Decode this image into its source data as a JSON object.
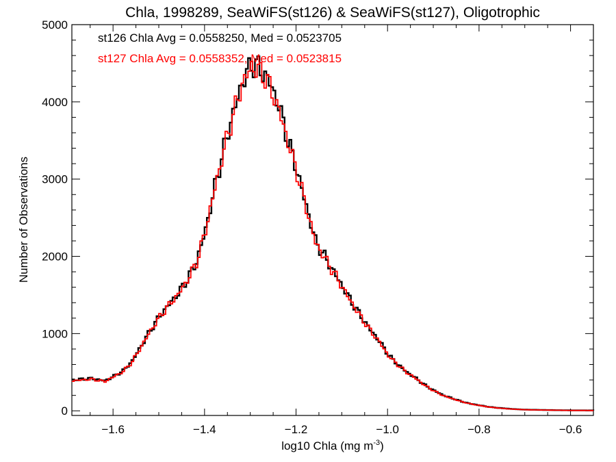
{
  "chart_data": {
    "type": "histogram",
    "title": "Chla, 1998289, SeaWiFS(st126) & SeaWiFS(st127), Oligotrophic",
    "xlabel_main": "log10 Chla (mg m",
    "xlabel_sup": "-3",
    "xlabel_end": ")",
    "ylabel": "Number of Observations",
    "xlim": [
      -1.69,
      -0.55
    ],
    "ylim": [
      -60,
      5000
    ],
    "xticks": [
      -1.6,
      -1.4,
      -1.2,
      -1.0,
      -0.8,
      -0.6
    ],
    "xtick_labels": [
      "−1.6",
      "−1.4",
      "−1.2",
      "−1.0",
      "−0.8",
      "−0.6"
    ],
    "yticks": [
      0,
      1000,
      2000,
      3000,
      4000,
      5000
    ],
    "ytick_labels": [
      "0",
      "1000",
      "2000",
      "3000",
      "4000",
      "5000"
    ],
    "annotations": [
      {
        "text": "st126 Chla Avg = 0.0558250, Med = 0.0523705",
        "color": "#000000"
      },
      {
        "text": "st127 Chla Avg = 0.0558352, Med = 0.0523815",
        "color": "#ff0000"
      }
    ],
    "series": [
      {
        "color": "#000000",
        "x": [
          -1.69,
          -1.65,
          -1.62,
          -1.6,
          -1.58,
          -1.56,
          -1.54,
          -1.52,
          -1.5,
          -1.48,
          -1.46,
          -1.44,
          -1.42,
          -1.4,
          -1.38,
          -1.36,
          -1.34,
          -1.32,
          -1.3,
          -1.29,
          -1.28,
          -1.27,
          -1.26,
          -1.24,
          -1.22,
          -1.2,
          -1.18,
          -1.16,
          -1.14,
          -1.12,
          -1.1,
          -1.08,
          -1.06,
          -1.04,
          -1.02,
          -1.0,
          -0.98,
          -0.96,
          -0.94,
          -0.92,
          -0.9,
          -0.88,
          -0.86,
          -0.84,
          -0.82,
          -0.8,
          -0.78,
          -0.76,
          -0.74,
          -0.72,
          -0.7,
          -0.65,
          -0.6,
          -0.55
        ],
        "y": [
          400,
          420,
          390,
          450,
          520,
          650,
          850,
          1050,
          1230,
          1380,
          1520,
          1700,
          1930,
          2350,
          2900,
          3400,
          3850,
          4250,
          4480,
          4480,
          4400,
          4350,
          4250,
          3950,
          3500,
          3100,
          2650,
          2200,
          2000,
          1800,
          1600,
          1400,
          1220,
          1050,
          900,
          720,
          600,
          500,
          420,
          330,
          260,
          200,
          160,
          120,
          90,
          70,
          50,
          38,
          28,
          20,
          15,
          10,
          6,
          5
        ]
      },
      {
        "color": "#ff0000",
        "x": [
          -1.69,
          -1.65,
          -1.62,
          -1.6,
          -1.58,
          -1.56,
          -1.54,
          -1.52,
          -1.5,
          -1.48,
          -1.46,
          -1.44,
          -1.42,
          -1.4,
          -1.38,
          -1.36,
          -1.34,
          -1.32,
          -1.3,
          -1.29,
          -1.28,
          -1.27,
          -1.26,
          -1.24,
          -1.22,
          -1.2,
          -1.18,
          -1.16,
          -1.14,
          -1.12,
          -1.1,
          -1.08,
          -1.06,
          -1.04,
          -1.02,
          -1.0,
          -0.98,
          -0.96,
          -0.94,
          -0.92,
          -0.9,
          -0.88,
          -0.86,
          -0.84,
          -0.82,
          -0.8,
          -0.78,
          -0.76,
          -0.74,
          -0.72,
          -0.7,
          -0.65,
          -0.6,
          -0.55
        ],
        "y": [
          390,
          410,
          380,
          445,
          510,
          640,
          840,
          1040,
          1220,
          1370,
          1510,
          1690,
          1920,
          2340,
          2880,
          3380,
          3830,
          4230,
          4460,
          4420,
          4380,
          4320,
          4200,
          3900,
          3480,
          3080,
          2630,
          2180,
          1980,
          1790,
          1590,
          1390,
          1210,
          1040,
          890,
          710,
          595,
          495,
          415,
          325,
          255,
          195,
          155,
          118,
          88,
          68,
          48,
          36,
          26,
          19,
          14,
          9,
          5,
          4
        ]
      }
    ]
  }
}
